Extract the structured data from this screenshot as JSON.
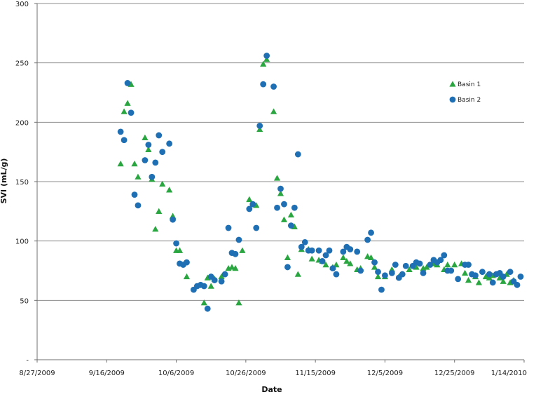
{
  "chart_data": {
    "type": "scatter",
    "title": "",
    "xlabel": "Date",
    "ylabel": "SVI (mL/g)",
    "ylim": [
      0,
      300
    ],
    "xlim": [
      "2009-08-27",
      "2010-01-14"
    ],
    "y_ticks": [
      0,
      50,
      100,
      150,
      200,
      250,
      300
    ],
    "y_tick_labels": [
      "-",
      "50",
      "100",
      "150",
      "200",
      "250",
      "300"
    ],
    "x_ticks": [
      "2009-08-27",
      "2009-09-16",
      "2009-10-06",
      "2009-10-26",
      "2009-11-15",
      "2009-12-05",
      "2009-12-25",
      "2010-01-14"
    ],
    "x_tick_labels": [
      "8/27/2009",
      "9/16/2009",
      "10/6/2009",
      "10/26/2009",
      "11/15/2009",
      "12/5/2009",
      "12/25/2009",
      "1/14/2010"
    ],
    "grid": "horizontal",
    "legend_position": "right",
    "series": [
      {
        "name": "Basin 1",
        "marker": "triangle",
        "color": "#2aa640",
        "points": [
          [
            "2009-09-20",
            165
          ],
          [
            "2009-09-21",
            209
          ],
          [
            "2009-09-22",
            216
          ],
          [
            "2009-09-23",
            232
          ],
          [
            "2009-09-24",
            165
          ],
          [
            "2009-09-25",
            154
          ],
          [
            "2009-09-27",
            187
          ],
          [
            "2009-09-28",
            177
          ],
          [
            "2009-09-29",
            152
          ],
          [
            "2009-09-30",
            110
          ],
          [
            "2009-10-01",
            125
          ],
          [
            "2009-10-02",
            148
          ],
          [
            "2009-10-04",
            143
          ],
          [
            "2009-10-05",
            121
          ],
          [
            "2009-10-06",
            92
          ],
          [
            "2009-10-07",
            92
          ],
          [
            "2009-10-09",
            70
          ],
          [
            "2009-10-14",
            48
          ],
          [
            "2009-10-15",
            69
          ],
          [
            "2009-10-16",
            62
          ],
          [
            "2009-10-17",
            68
          ],
          [
            "2009-10-19",
            70
          ],
          [
            "2009-10-21",
            77
          ],
          [
            "2009-10-22",
            78
          ],
          [
            "2009-10-23",
            77
          ],
          [
            "2009-10-24",
            48
          ],
          [
            "2009-10-25",
            92
          ],
          [
            "2009-10-27",
            135
          ],
          [
            "2009-10-28",
            131
          ],
          [
            "2009-10-29",
            130
          ],
          [
            "2009-10-30",
            194
          ],
          [
            "2009-10-31",
            249
          ],
          [
            "2009-11-01",
            253
          ],
          [
            "2009-11-03",
            209
          ],
          [
            "2009-11-04",
            153
          ],
          [
            "2009-11-05",
            140
          ],
          [
            "2009-11-06",
            118
          ],
          [
            "2009-11-07",
            86
          ],
          [
            "2009-11-08",
            122
          ],
          [
            "2009-11-09",
            112
          ],
          [
            "2009-11-10",
            72
          ],
          [
            "2009-11-11",
            93
          ],
          [
            "2009-11-13",
            93
          ],
          [
            "2009-11-14",
            85
          ],
          [
            "2009-11-16",
            84
          ],
          [
            "2009-11-17",
            83
          ],
          [
            "2009-11-18",
            80
          ],
          [
            "2009-11-20",
            78
          ],
          [
            "2009-11-21",
            80
          ],
          [
            "2009-11-23",
            86
          ],
          [
            "2009-11-24",
            83
          ],
          [
            "2009-11-25",
            81
          ],
          [
            "2009-11-27",
            76
          ],
          [
            "2009-11-28",
            77
          ],
          [
            "2009-11-30",
            87
          ],
          [
            "2009-12-01",
            86
          ],
          [
            "2009-12-02",
            78
          ],
          [
            "2009-12-03",
            70
          ],
          [
            "2009-12-05",
            70
          ],
          [
            "2009-12-07",
            76
          ],
          [
            "2009-12-09",
            70
          ],
          [
            "2009-12-12",
            76
          ],
          [
            "2009-12-14",
            78
          ],
          [
            "2009-12-16",
            77
          ],
          [
            "2009-12-17",
            78
          ],
          [
            "2009-12-19",
            81
          ],
          [
            "2009-12-20",
            80
          ],
          [
            "2009-12-22",
            76
          ],
          [
            "2009-12-23",
            80
          ],
          [
            "2009-12-25",
            80
          ],
          [
            "2009-12-27",
            81
          ],
          [
            "2009-12-28",
            73
          ],
          [
            "2009-12-29",
            67
          ],
          [
            "2009-12-31",
            70
          ],
          [
            "2010-01-01",
            65
          ],
          [
            "2010-01-03",
            70
          ],
          [
            "2010-01-04",
            69
          ],
          [
            "2010-01-05",
            71
          ],
          [
            "2010-01-07",
            69
          ],
          [
            "2010-01-08",
            66
          ],
          [
            "2010-01-09",
            72
          ],
          [
            "2010-01-10",
            65
          ],
          [
            "2010-01-11",
            67
          ]
        ]
      },
      {
        "name": "Basin 2",
        "marker": "circle",
        "color": "#1f6fb4",
        "points": [
          [
            "2009-09-20",
            192
          ],
          [
            "2009-09-21",
            185
          ],
          [
            "2009-09-22",
            233
          ],
          [
            "2009-09-23",
            208
          ],
          [
            "2009-09-24",
            139
          ],
          [
            "2009-09-25",
            130
          ],
          [
            "2009-09-27",
            168
          ],
          [
            "2009-09-28",
            181
          ],
          [
            "2009-09-29",
            154
          ],
          [
            "2009-09-30",
            166
          ],
          [
            "2009-10-01",
            189
          ],
          [
            "2009-10-02",
            175
          ],
          [
            "2009-10-04",
            182
          ],
          [
            "2009-10-05",
            118
          ],
          [
            "2009-10-06",
            98
          ],
          [
            "2009-10-07",
            81
          ],
          [
            "2009-10-08",
            80
          ],
          [
            "2009-10-09",
            82
          ],
          [
            "2009-10-11",
            59
          ],
          [
            "2009-10-12",
            62
          ],
          [
            "2009-10-13",
            63
          ],
          [
            "2009-10-14",
            62
          ],
          [
            "2009-10-15",
            43
          ],
          [
            "2009-10-16",
            70
          ],
          [
            "2009-10-17",
            67
          ],
          [
            "2009-10-19",
            66
          ],
          [
            "2009-10-20",
            72
          ],
          [
            "2009-10-21",
            111
          ],
          [
            "2009-10-22",
            90
          ],
          [
            "2009-10-23",
            89
          ],
          [
            "2009-10-24",
            101
          ],
          [
            "2009-10-27",
            127
          ],
          [
            "2009-10-28",
            131
          ],
          [
            "2009-10-29",
            111
          ],
          [
            "2009-10-30",
            197
          ],
          [
            "2009-10-31",
            232
          ],
          [
            "2009-11-01",
            256
          ],
          [
            "2009-11-03",
            230
          ],
          [
            "2009-11-04",
            128
          ],
          [
            "2009-11-05",
            144
          ],
          [
            "2009-11-06",
            131
          ],
          [
            "2009-11-07",
            78
          ],
          [
            "2009-11-08",
            113
          ],
          [
            "2009-11-09",
            128
          ],
          [
            "2009-11-10",
            173
          ],
          [
            "2009-11-11",
            95
          ],
          [
            "2009-11-12",
            99
          ],
          [
            "2009-11-13",
            92
          ],
          [
            "2009-11-14",
            92
          ],
          [
            "2009-11-16",
            92
          ],
          [
            "2009-11-17",
            83
          ],
          [
            "2009-11-18",
            88
          ],
          [
            "2009-11-19",
            92
          ],
          [
            "2009-11-20",
            77
          ],
          [
            "2009-11-21",
            72
          ],
          [
            "2009-11-23",
            91
          ],
          [
            "2009-11-24",
            95
          ],
          [
            "2009-11-25",
            93
          ],
          [
            "2009-11-27",
            91
          ],
          [
            "2009-11-28",
            75
          ],
          [
            "2009-11-30",
            101
          ],
          [
            "2009-12-01",
            107
          ],
          [
            "2009-12-02",
            82
          ],
          [
            "2009-12-03",
            74
          ],
          [
            "2009-12-04",
            59
          ],
          [
            "2009-12-05",
            71
          ],
          [
            "2009-12-07",
            73
          ],
          [
            "2009-12-08",
            80
          ],
          [
            "2009-12-09",
            69
          ],
          [
            "2009-12-10",
            72
          ],
          [
            "2009-12-11",
            79
          ],
          [
            "2009-12-13",
            79
          ],
          [
            "2009-12-14",
            82
          ],
          [
            "2009-12-15",
            81
          ],
          [
            "2009-12-16",
            73
          ],
          [
            "2009-12-18",
            80
          ],
          [
            "2009-12-19",
            84
          ],
          [
            "2009-12-20",
            82
          ],
          [
            "2009-12-21",
            84
          ],
          [
            "2009-12-22",
            88
          ],
          [
            "2009-12-23",
            75
          ],
          [
            "2009-12-24",
            75
          ],
          [
            "2009-12-26",
            68
          ],
          [
            "2009-12-28",
            80
          ],
          [
            "2009-12-29",
            80
          ],
          [
            "2009-12-30",
            72
          ],
          [
            "2009-12-31",
            71
          ],
          [
            "2010-01-02",
            74
          ],
          [
            "2010-01-04",
            72
          ],
          [
            "2010-01-05",
            65
          ],
          [
            "2010-01-06",
            72
          ],
          [
            "2010-01-07",
            73
          ],
          [
            "2010-01-08",
            70
          ],
          [
            "2010-01-10",
            74
          ],
          [
            "2010-01-11",
            66
          ],
          [
            "2010-01-12",
            63
          ],
          [
            "2010-01-13",
            70
          ]
        ]
      }
    ]
  }
}
